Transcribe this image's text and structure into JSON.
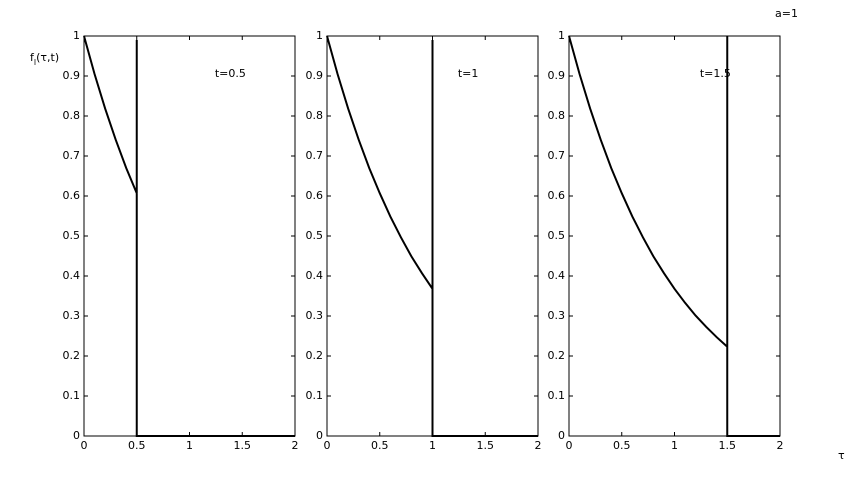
{
  "chart_data": [
    {
      "type": "line",
      "ylabel": [
        "f",
        "l",
        "(τ,t)"
      ],
      "annotation": "t=0.5",
      "xlim": [
        0,
        2
      ],
      "ylim": [
        0,
        1
      ],
      "xticks": [
        0,
        0.5,
        1,
        1.5,
        2
      ],
      "yticks": [
        0,
        0.1,
        0.2,
        0.3,
        0.4,
        0.5,
        0.6,
        0.7,
        0.8,
        0.9,
        1
      ],
      "series": [
        {
          "color": "#000000",
          "x": [
            0,
            0.1,
            0.2,
            0.3,
            0.4,
            0.5,
            0.5,
            0.5,
            2
          ],
          "values": [
            1,
            0.905,
            0.819,
            0.741,
            0.67,
            0.607,
            0.99,
            0,
            0
          ]
        }
      ]
    },
    {
      "type": "line",
      "annotation": "t=1",
      "xlim": [
        0,
        2
      ],
      "ylim": [
        0,
        1
      ],
      "xticks": [
        0,
        0.5,
        1,
        1.5,
        2
      ],
      "yticks": [
        0,
        0.1,
        0.2,
        0.3,
        0.4,
        0.5,
        0.6,
        0.7,
        0.8,
        0.9,
        1
      ],
      "series": [
        {
          "color": "#000000",
          "x": [
            0,
            0.1,
            0.2,
            0.3,
            0.4,
            0.5,
            0.6,
            0.7,
            0.8,
            0.9,
            1,
            1,
            1,
            2
          ],
          "values": [
            1,
            0.905,
            0.819,
            0.741,
            0.67,
            0.607,
            0.549,
            0.497,
            0.449,
            0.407,
            0.368,
            0.99,
            0,
            0
          ]
        }
      ]
    },
    {
      "type": "line",
      "annotation": "t=1.5",
      "note": "a=1",
      "xlabel": "τ",
      "xlim": [
        0,
        2
      ],
      "ylim": [
        0,
        1
      ],
      "xticks": [
        0,
        0.5,
        1,
        1.5,
        2
      ],
      "yticks": [
        0,
        0.1,
        0.2,
        0.3,
        0.4,
        0.5,
        0.6,
        0.7,
        0.8,
        0.9,
        1
      ],
      "series": [
        {
          "color": "#000000",
          "x": [
            0,
            0.1,
            0.2,
            0.3,
            0.4,
            0.5,
            0.6,
            0.7,
            0.8,
            0.9,
            1,
            1.1,
            1.2,
            1.3,
            1.4,
            1.5,
            1.5,
            1.5,
            2
          ],
          "values": [
            1,
            0.905,
            0.819,
            0.741,
            0.67,
            0.607,
            0.549,
            0.497,
            0.449,
            0.407,
            0.368,
            0.333,
            0.301,
            0.273,
            0.247,
            0.223,
            1,
            0,
            0
          ]
        }
      ]
    }
  ]
}
